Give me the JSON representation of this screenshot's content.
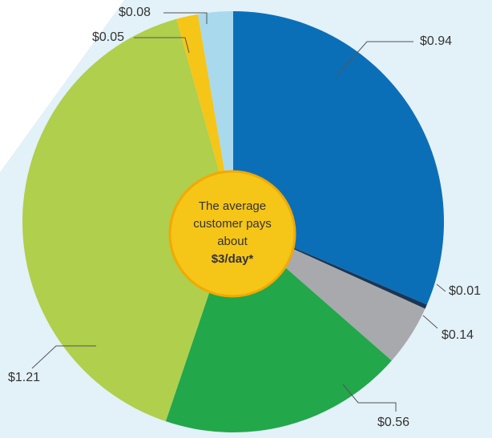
{
  "chart_data": {
    "type": "pie",
    "categories": [
      null,
      null,
      null,
      null,
      null,
      null,
      null
    ],
    "values": [
      0.94,
      0.01,
      0.14,
      0.56,
      1.21,
      0.05,
      0.08
    ],
    "value_labels": [
      "$0.94",
      "$0.01",
      "$0.14",
      "$0.56",
      "$1.21",
      "$0.05",
      "$0.08"
    ],
    "colors": [
      "#0b6fb8",
      "#1b3553",
      "#a7a9ac",
      "#22a74b",
      "#afcf4d",
      "#f5c518",
      "#a9d9ec"
    ],
    "annotation": [
      "The average",
      "customer pays",
      "about",
      "$3/day*"
    ]
  }
}
